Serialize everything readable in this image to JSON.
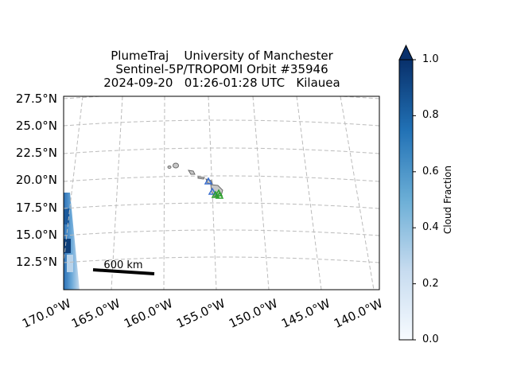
{
  "title": {
    "line1": "PlumeTraj    University of Manchester",
    "line2": "Sentinel-5P/TROPOMI Orbit #35946",
    "line3": "2024-09-20   01:26-01:28 UTC   Kilauea"
  },
  "map": {
    "lat_labels": [
      "27.5°N",
      "25.0°N",
      "22.5°N",
      "20.0°N",
      "17.5°N",
      "15.0°N",
      "12.5°N"
    ],
    "lon_labels": [
      "170.0°W",
      "165.0°W",
      "160.0°W",
      "155.0°W",
      "150.0°W",
      "145.0°W",
      "140.0°W"
    ],
    "scale_bar_label": "600 km",
    "colors": {
      "grid": "#bbbbbb",
      "coast": "#808080",
      "triangle_blue": "#3a6fd0",
      "triangle_green": "#2ca02c"
    }
  },
  "colorbar": {
    "label": "Cloud Fraction",
    "ticks": [
      "1.0",
      "0.8",
      "0.6",
      "0.4",
      "0.2",
      "0.0"
    ],
    "range": [
      0,
      1
    ],
    "colormap": "Blues"
  }
}
